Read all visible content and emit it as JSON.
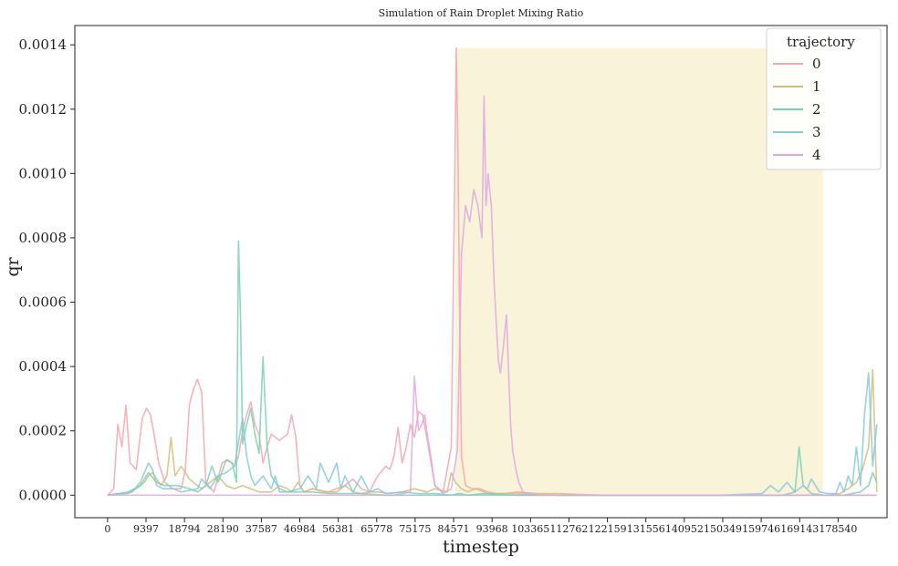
{
  "chart_data": {
    "type": "line",
    "title": "Simulation of Rain Droplet Mixing Ratio",
    "xlabel": "timestep",
    "ylabel": "qr",
    "xlim": [
      -8000,
      190500
    ],
    "ylim": [
      -7e-05,
      0.00146
    ],
    "yticks": [
      0.0,
      0.0002,
      0.0004,
      0.0006,
      0.0008,
      0.001,
      0.0012,
      0.0014
    ],
    "ytick_labels": [
      "0.0000",
      "0.0002",
      "0.0004",
      "0.0006",
      "0.0008",
      "0.0010",
      "0.0012",
      "0.0014"
    ],
    "xticks": [
      0,
      9397,
      18794,
      28190,
      37587,
      46984,
      56381,
      65778,
      75175,
      84571,
      93968,
      103365,
      112762,
      122159,
      131556,
      140952,
      150349,
      159746,
      169143,
      178540
    ],
    "xtick_labels": [
      "0",
      "9397",
      "18794",
      "28190",
      "37587",
      "46984",
      "56381",
      "65778",
      "75175",
      "84571",
      "93968",
      "103365",
      "112762",
      "122159",
      "131556",
      "140952",
      "150349",
      "159746",
      "169143",
      "178540"
    ],
    "grid": false,
    "highlight_region": {
      "x": [
        85000,
        174800
      ],
      "y": [
        0,
        0.00139
      ],
      "color": "#f9f3da"
    },
    "legend": {
      "title": "trajectory",
      "position": "top-right"
    },
    "series": [
      {
        "name": "0",
        "color": "#f4a6ae",
        "x": [
          0,
          1500,
          2500,
          3500,
          4500,
          5500,
          7000,
          8500,
          9500,
          10500,
          11500,
          12500,
          14000,
          16000,
          18000,
          19000,
          20000,
          21000,
          22000,
          23000,
          24000,
          26000,
          28000,
          29500,
          31000,
          32000,
          33000,
          34000,
          35000,
          36000,
          37000,
          38000,
          39000,
          40000,
          42000,
          44000,
          45000,
          46000,
          47000,
          48000,
          50000,
          54000,
          58000,
          60000,
          62000,
          64000,
          66000,
          68000,
          69000,
          70000,
          71000,
          72000,
          73000,
          74000,
          75000,
          76000,
          77000,
          78000,
          80000,
          82000,
          84000,
          84800,
          85200,
          85600,
          86000,
          86500,
          87500,
          89000,
          91000,
          93000,
          95000,
          100000,
          110000,
          130000,
          150000,
          170000,
          180000,
          185000,
          188000
        ],
        "y": [
          0,
          2e-05,
          0.00022,
          0.00015,
          0.00028,
          0.0001,
          8e-05,
          0.00024,
          0.00027,
          0.00025,
          0.00018,
          0.0001,
          4e-05,
          2e-05,
          2e-05,
          8e-05,
          0.00028,
          0.00033,
          0.00036,
          0.00032,
          4e-05,
          1e-05,
          0.0001,
          0.00011,
          9e-05,
          0.00012,
          0.0002,
          0.00025,
          0.00029,
          0.00022,
          0.00019,
          0.0001,
          0.00015,
          0.00019,
          0.00017,
          0.00019,
          0.00025,
          0.00018,
          3e-05,
          1e-05,
          2e-05,
          1e-05,
          3e-05,
          5e-05,
          2e-05,
          1e-05,
          6e-05,
          9e-05,
          8e-05,
          0.00012,
          0.00021,
          0.0001,
          0.00015,
          0.00022,
          0.00018,
          0.00026,
          0.00025,
          0.00018,
          3e-05,
          1e-05,
          0.00015,
          0.00095,
          0.00139,
          0.0011,
          0.0006,
          0.00012,
          3e-05,
          2e-05,
          2e-05,
          1e-05,
          5e-06,
          5e-06,
          0,
          0,
          0,
          0,
          0,
          0,
          0
        ]
      },
      {
        "name": "1",
        "color": "#d3bd7a",
        "x": [
          0,
          5000,
          7000,
          9000,
          10000,
          11000,
          13000,
          14500,
          15500,
          16500,
          18000,
          20000,
          23000,
          25000,
          27000,
          29000,
          31000,
          33000,
          35000,
          37000,
          40000,
          42000,
          44000,
          45000,
          46500,
          48000,
          50000,
          53000,
          56000,
          58000,
          60000,
          62000,
          64000,
          66000,
          69000,
          72000,
          75000,
          78000,
          80000,
          83000,
          84000,
          85000,
          86500,
          88000,
          90000,
          93000,
          97000,
          100000,
          105000,
          110000,
          120000,
          140000,
          160000,
          170000,
          176000,
          179000,
          181000,
          183000,
          184500,
          186000,
          187000,
          188000
        ],
        "y": [
          0,
          5e-06,
          2e-05,
          4e-05,
          6e-05,
          7e-05,
          3e-05,
          6e-05,
          0.00018,
          6e-05,
          9e-05,
          5e-05,
          2e-05,
          4e-05,
          6e-05,
          3e-05,
          2e-05,
          3e-05,
          2e-05,
          1e-05,
          1e-05,
          3e-05,
          2e-05,
          1e-05,
          4e-05,
          1e-05,
          2e-05,
          1e-05,
          1e-05,
          3e-05,
          1e-05,
          5e-06,
          1e-05,
          1e-05,
          5e-06,
          1e-05,
          2e-05,
          1e-05,
          2e-05,
          1e-05,
          7e-05,
          4e-05,
          2e-05,
          1e-05,
          2e-05,
          5e-06,
          5e-06,
          1e-05,
          5e-06,
          5e-06,
          0,
          0,
          0,
          0,
          0,
          5e-06,
          2e-05,
          4e-05,
          8e-05,
          0.00015,
          0.00039,
          1e-05
        ]
      },
      {
        "name": "2",
        "color": "#7ed0b0",
        "x": [
          0,
          5000,
          8000,
          10000,
          12000,
          14000,
          17000,
          20000,
          22000,
          24000,
          25500,
          27000,
          29000,
          30500,
          31500,
          32000,
          32500,
          33000,
          34000,
          35000,
          36000,
          37000,
          38000,
          39000,
          40000,
          42000,
          44000,
          47000,
          50000,
          54000,
          58000,
          62000,
          68000,
          76000,
          84000,
          86000,
          88000,
          92000,
          100000,
          120000,
          150000,
          165000,
          168000,
          169000,
          170000,
          172000,
          175000,
          180000,
          184000,
          186000,
          187000,
          188000
        ],
        "y": [
          0,
          1e-05,
          3e-05,
          7e-05,
          4e-05,
          3e-05,
          3e-05,
          2e-05,
          1e-05,
          3e-05,
          9e-05,
          4e-05,
          0.00011,
          0.0001,
          4e-05,
          0.00079,
          0.00055,
          0.00016,
          0.00022,
          0.00027,
          0.00019,
          0.00013,
          0.00043,
          0.00015,
          6e-05,
          2e-05,
          1e-05,
          1e-05,
          1e-05,
          5e-06,
          5e-06,
          5e-06,
          0,
          0,
          0,
          5e-06,
          0,
          5e-06,
          0,
          0,
          0,
          0,
          1e-05,
          0.00015,
          3e-05,
          5e-06,
          0,
          0,
          1e-05,
          3e-05,
          7e-05,
          4e-05
        ]
      },
      {
        "name": "3",
        "color": "#86cad8",
        "x": [
          0,
          6000,
          8000,
          10000,
          11000,
          12000,
          13500,
          16000,
          18000,
          22000,
          23000,
          25000,
          27000,
          29000,
          31000,
          33000,
          34000,
          35000,
          36000,
          38000,
          40000,
          41000,
          42000,
          44000,
          47000,
          49000,
          51000,
          52000,
          54000,
          56000,
          57000,
          58000,
          60000,
          62000,
          64000,
          66000,
          68000,
          72000,
          76000,
          80000,
          84000,
          90000,
          100000,
          120000,
          150000,
          160000,
          162000,
          164000,
          166000,
          168000,
          170000,
          171000,
          172000,
          174000,
          176000,
          178000,
          179000,
          180000,
          181000,
          182000,
          183000,
          184000,
          185000,
          186000,
          187000,
          188000
        ],
        "y": [
          0,
          1e-05,
          4e-05,
          0.0001,
          8e-05,
          3e-05,
          2e-05,
          2e-05,
          1e-05,
          2e-05,
          5e-05,
          2e-05,
          6e-05,
          7e-05,
          9e-05,
          0.00024,
          0.00012,
          6e-05,
          3e-05,
          6e-05,
          2e-05,
          6e-05,
          1e-05,
          1e-05,
          2e-05,
          6e-05,
          2e-05,
          0.0001,
          4e-05,
          0.0001,
          2e-05,
          6e-05,
          1e-05,
          6e-05,
          1e-05,
          2e-05,
          5e-06,
          1e-05,
          5e-06,
          5e-06,
          0,
          0,
          0,
          0,
          0,
          5e-06,
          3e-05,
          1e-05,
          4e-05,
          1e-05,
          3e-05,
          2e-05,
          5e-05,
          1e-05,
          5e-06,
          5e-06,
          4e-05,
          1e-05,
          6e-05,
          3e-05,
          0.00015,
          3e-05,
          0.00025,
          0.00038,
          9e-05,
          0.00022
        ]
      },
      {
        "name": "4",
        "color": "#e0a8e0",
        "x": [
          0,
          60000,
          70000,
          74000,
          75000,
          76000,
          76800,
          77500,
          78000,
          79000,
          80000,
          82000,
          84000,
          85500,
          86500,
          87500,
          88500,
          89500,
          90500,
          91500,
          92000,
          92500,
          93000,
          93800,
          94500,
          95500,
          96000,
          96800,
          97500,
          98500,
          99000,
          99800,
          100500,
          101500,
          103000,
          105000,
          110000,
          120000,
          140000,
          160000,
          180000,
          188000
        ],
        "y": [
          0,
          0,
          0,
          1e-05,
          0.00037,
          0.0002,
          0.00022,
          0.00025,
          0.0002,
          0.00012,
          3e-05,
          5e-06,
          2e-05,
          0.00014,
          0.00075,
          0.0009,
          0.00085,
          0.00095,
          0.0009,
          0.0008,
          0.00124,
          0.0009,
          0.001,
          0.0009,
          0.00065,
          0.00042,
          0.00038,
          0.00047,
          0.00056,
          0.00022,
          0.00014,
          8e-05,
          4e-05,
          1e-05,
          5e-06,
          0,
          0,
          0,
          0,
          0,
          0,
          0
        ]
      }
    ]
  }
}
